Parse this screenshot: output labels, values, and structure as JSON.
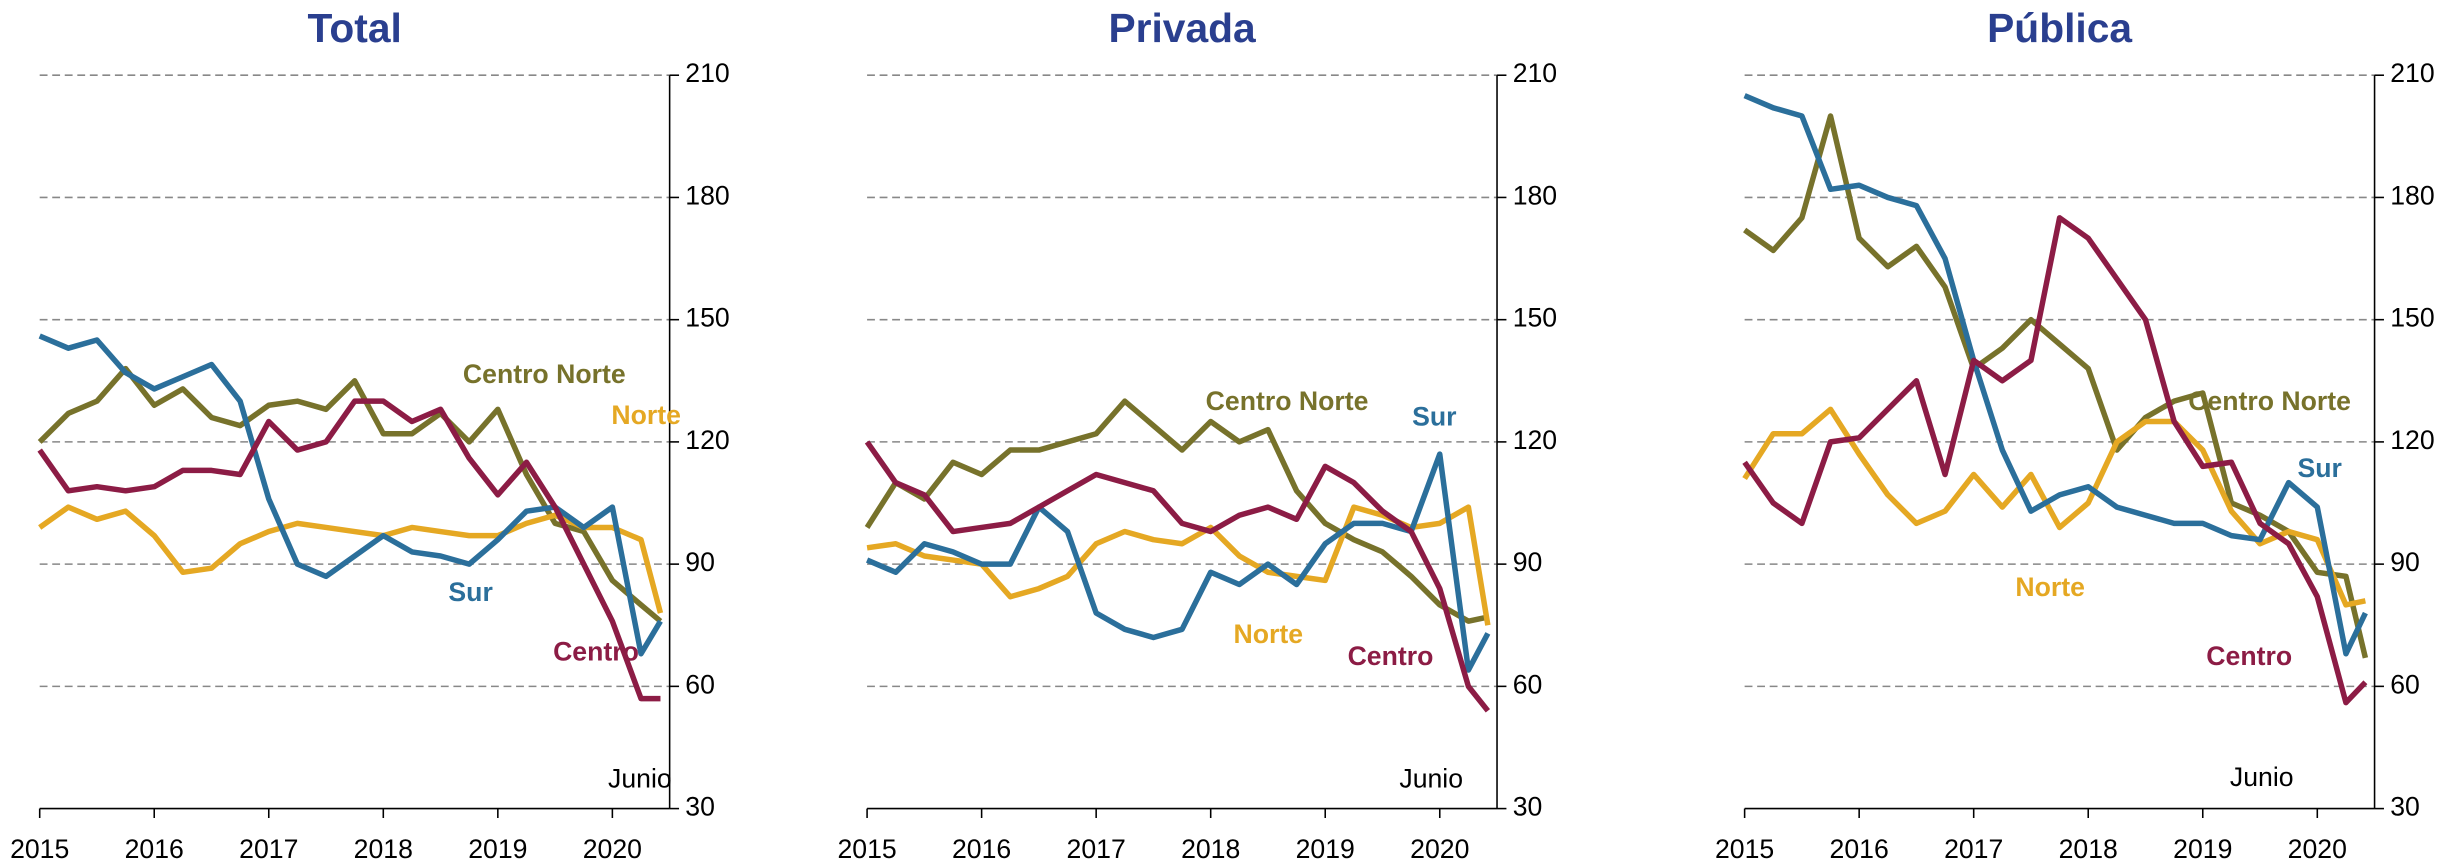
{
  "chart_data": [
    {
      "type": "line",
      "title": "Total",
      "annotation": "Junio",
      "x": [
        2015,
        2015.25,
        2015.5,
        2015.75,
        2016,
        2016.25,
        2016.5,
        2016.75,
        2017,
        2017.25,
        2017.5,
        2017.75,
        2018,
        2018.25,
        2018.5,
        2018.75,
        2019,
        2019.25,
        2019.5,
        2019.75,
        2020,
        2020.25,
        2020.42
      ],
      "xlim": [
        2015,
        2020.5
      ],
      "xticks": [
        2015,
        2016,
        2017,
        2018,
        2019,
        2020
      ],
      "ylim": [
        30,
        210
      ],
      "yticks": [
        30,
        60,
        90,
        120,
        150,
        180,
        210
      ],
      "grid": true,
      "series": [
        {
          "name": "Centro Norte",
          "color": "#77722b",
          "values": [
            120,
            127,
            130,
            138,
            129,
            133,
            126,
            124,
            129,
            130,
            128,
            135,
            122,
            122,
            127,
            120,
            128,
            112,
            100,
            98,
            86,
            80,
            76
          ]
        },
        {
          "name": "Norte",
          "color": "#e5a823",
          "values": [
            99,
            104,
            101,
            103,
            97,
            88,
            89,
            95,
            98,
            100,
            99,
            98,
            97,
            99,
            98,
            97,
            97,
            100,
            102,
            99,
            99,
            96,
            78
          ]
        },
        {
          "name": "Sur",
          "color": "#2b6f9b",
          "values": [
            146,
            143,
            145,
            137,
            133,
            136,
            139,
            130,
            106,
            90,
            87,
            92,
            97,
            93,
            92,
            90,
            96,
            103,
            104,
            99,
            104,
            68,
            76
          ]
        },
        {
          "name": "Centro",
          "color": "#8c1c45",
          "values": [
            118,
            108,
            109,
            108,
            109,
            113,
            113,
            112,
            125,
            118,
            120,
            130,
            130,
            125,
            128,
            116,
            107,
            115,
            104,
            90,
            76,
            57,
            57
          ]
        }
      ]
    },
    {
      "type": "line",
      "title": "Privada",
      "annotation": "Junio",
      "x": [
        2015,
        2015.25,
        2015.5,
        2015.75,
        2016,
        2016.25,
        2016.5,
        2016.75,
        2017,
        2017.25,
        2017.5,
        2017.75,
        2018,
        2018.25,
        2018.5,
        2018.75,
        2019,
        2019.25,
        2019.5,
        2019.75,
        2020,
        2020.25,
        2020.42
      ],
      "xlim": [
        2015,
        2020.5
      ],
      "xticks": [
        2015,
        2016,
        2017,
        2018,
        2019,
        2020
      ],
      "ylim": [
        30,
        210
      ],
      "yticks": [
        30,
        60,
        90,
        120,
        150,
        180,
        210
      ],
      "grid": true,
      "series": [
        {
          "name": "Centro Norte",
          "color": "#77722b",
          "values": [
            99,
            110,
            106,
            115,
            112,
            118,
            118,
            120,
            122,
            130,
            124,
            118,
            125,
            120,
            123,
            108,
            100,
            96,
            93,
            87,
            80,
            76,
            77
          ]
        },
        {
          "name": "Norte",
          "color": "#e5a823",
          "values": [
            94,
            95,
            92,
            91,
            90,
            82,
            84,
            87,
            95,
            98,
            96,
            95,
            99,
            92,
            88,
            87,
            86,
            104,
            102,
            99,
            100,
            104,
            75
          ]
        },
        {
          "name": "Sur",
          "color": "#2b6f9b",
          "values": [
            91,
            88,
            95,
            93,
            90,
            90,
            104,
            98,
            78,
            74,
            72,
            74,
            88,
            85,
            90,
            85,
            95,
            100,
            100,
            98,
            117,
            64,
            73
          ]
        },
        {
          "name": "Centro",
          "color": "#8c1c45",
          "values": [
            120,
            110,
            107,
            98,
            99,
            100,
            104,
            108,
            112,
            110,
            108,
            100,
            98,
            102,
            104,
            101,
            114,
            110,
            103,
            98,
            84,
            60,
            54
          ]
        }
      ]
    },
    {
      "type": "line",
      "title": "Pública",
      "annotation": "Junio",
      "x": [
        2015,
        2015.25,
        2015.5,
        2015.75,
        2016,
        2016.25,
        2016.5,
        2016.75,
        2017,
        2017.25,
        2017.5,
        2017.75,
        2018,
        2018.25,
        2018.5,
        2018.75,
        2019,
        2019.25,
        2019.5,
        2019.75,
        2020,
        2020.25,
        2020.42
      ],
      "xlim": [
        2015,
        2020.5
      ],
      "xticks": [
        2015,
        2016,
        2017,
        2018,
        2019,
        2020
      ],
      "ylim": [
        30,
        210
      ],
      "yticks": [
        30,
        60,
        90,
        120,
        150,
        180,
        210
      ],
      "grid": true,
      "series": [
        {
          "name": "Centro Norte",
          "color": "#77722b",
          "values": [
            172,
            167,
            175,
            200,
            170,
            163,
            168,
            158,
            138,
            143,
            150,
            144,
            138,
            118,
            126,
            130,
            132,
            105,
            102,
            98,
            88,
            87,
            67
          ]
        },
        {
          "name": "Norte",
          "color": "#e5a823",
          "values": [
            111,
            122,
            122,
            128,
            117,
            107,
            100,
            103,
            112,
            104,
            112,
            99,
            105,
            120,
            125,
            125,
            118,
            103,
            95,
            98,
            96,
            80,
            81
          ]
        },
        {
          "name": "Sur",
          "color": "#2b6f9b",
          "values": [
            205,
            202,
            200,
            182,
            183,
            180,
            178,
            165,
            140,
            118,
            103,
            107,
            109,
            104,
            102,
            100,
            100,
            97,
            96,
            110,
            104,
            68,
            78
          ]
        },
        {
          "name": "Centro",
          "color": "#8c1c45",
          "values": [
            115,
            105,
            100,
            120,
            121,
            128,
            135,
            112,
            140,
            135,
            140,
            175,
            170,
            160,
            150,
            125,
            114,
            115,
            100,
            95,
            82,
            56,
            61
          ]
        }
      ]
    }
  ]
}
